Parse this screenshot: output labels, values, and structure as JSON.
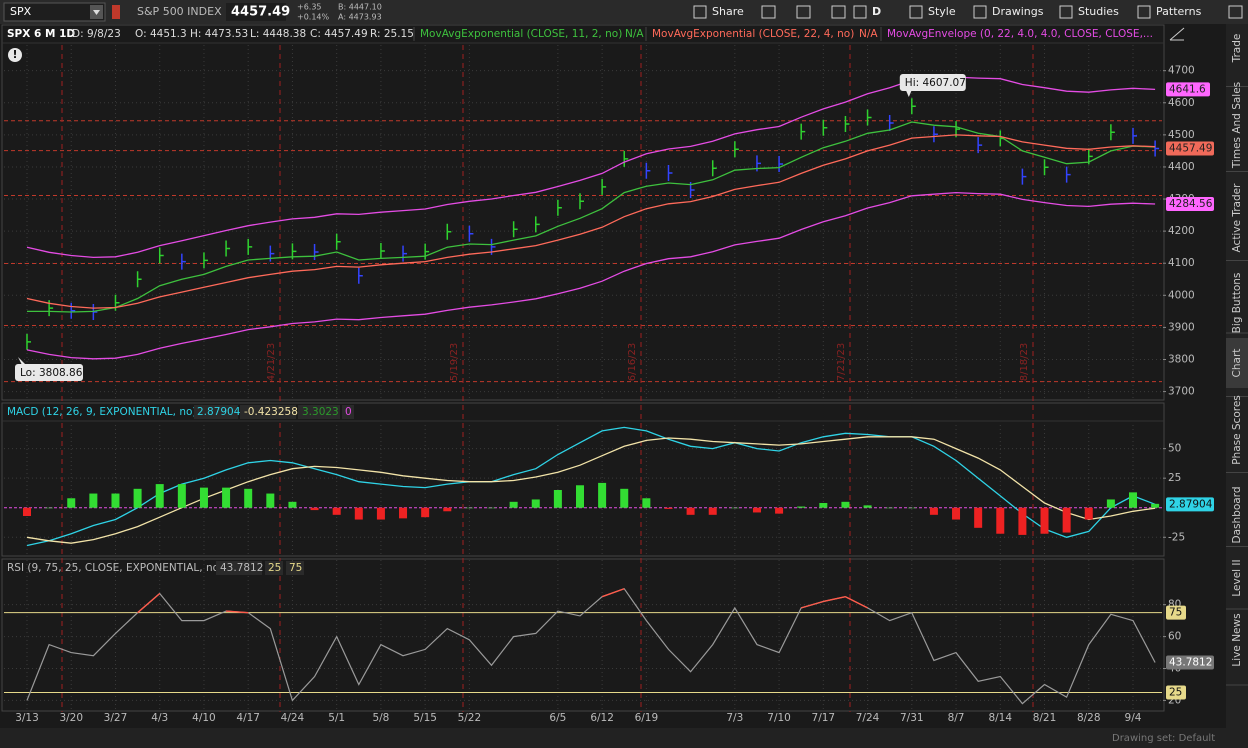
{
  "toolbar": {
    "symbol": "SPX",
    "description": "S&P 500 INDEX",
    "last": "4457.49",
    "change": "+6.35",
    "change_pct": "+0.14%",
    "bid": "B: 4447.10",
    "ask": "A: 4473.93",
    "buttons": [
      "Share",
      "D",
      "Style",
      "Drawings",
      "Studies",
      "Patterns"
    ]
  },
  "side_tabs": [
    "Trade",
    "Times And Sales",
    "Active Trader",
    "Big Buttons",
    "Chart",
    "Phase Scores",
    "Dashboard",
    "Level II",
    "Live News"
  ],
  "status": "Drawing set: Default",
  "chart_data": [
    {
      "type": "line",
      "title": "SPX 6 M 1D",
      "quote": [
        "D: 9/8/23",
        "O: 4451.3",
        "H: 4473.53",
        "L: 4448.38",
        "C: 4457.49",
        "R: 25.15"
      ],
      "study_values": [
        "N/A",
        "N/A"
      ],
      "high_label": "Hi: 4607.07",
      "low_label": "Lo: 3808.86",
      "expirations": [
        "4/21/23",
        "5/19/23",
        "6/16/23",
        "7/21/23",
        "8/18/23"
      ],
      "levels": [
        4544,
        4451,
        4311,
        4099,
        3906,
        3731
      ],
      "ylim": [
        3680,
        4780
      ],
      "yticks": [
        3700,
        3800,
        3900,
        4000,
        4100,
        4200,
        4300,
        4400,
        4500,
        4600,
        4700
      ],
      "grid": true,
      "series": [
        {
          "style": "bars",
          "up_color": "#2fd12f",
          "down_color": "#3344ff",
          "values": [
            3855,
            3960,
            3952,
            3948,
            3977,
            4050,
            4124,
            4105,
            4109,
            4146,
            4151,
            4130,
            4137,
            4135,
            4167,
            4061,
            4138,
            4130,
            4136,
            4198,
            4192,
            4151,
            4206,
            4221,
            4273,
            4293,
            4338,
            4425,
            4388,
            4381,
            4328,
            4396,
            4455,
            4411,
            4409,
            4510,
            4522,
            4534,
            4554,
            4537,
            4589,
            4502,
            4518,
            4468,
            4489,
            4370,
            4399,
            4376,
            4433,
            4508,
            4497,
            4457.49
          ]
        },
        {
          "name": "MovAvgExponential (CLOSE, 11, 2, no)",
          "color": "#3ec13e",
          "values": [
            3950,
            3950,
            3948,
            3950,
            3962,
            3990,
            4030,
            4050,
            4065,
            4090,
            4110,
            4115,
            4120,
            4122,
            4135,
            4110,
            4115,
            4118,
            4122,
            4150,
            4160,
            4158,
            4172,
            4185,
            4215,
            4240,
            4270,
            4320,
            4340,
            4350,
            4345,
            4360,
            4390,
            4395,
            4398,
            4430,
            4460,
            4480,
            4505,
            4515,
            4540,
            4530,
            4525,
            4505,
            4495,
            4450,
            4430,
            4410,
            4415,
            4450,
            4465,
            4462
          ]
        },
        {
          "name": "MovAvgExponential (CLOSE, 22, 4, no)",
          "color": "#ff6a5a",
          "values": [
            3990,
            3975,
            3965,
            3960,
            3962,
            3975,
            3995,
            4010,
            4025,
            4040,
            4055,
            4065,
            4075,
            4080,
            4090,
            4088,
            4095,
            4100,
            4105,
            4118,
            4128,
            4135,
            4145,
            4155,
            4172,
            4190,
            4212,
            4245,
            4270,
            4285,
            4292,
            4308,
            4330,
            4342,
            4352,
            4380,
            4405,
            4425,
            4450,
            4468,
            4490,
            4495,
            4500,
            4497,
            4495,
            4478,
            4468,
            4458,
            4455,
            4462,
            4466,
            4463
          ]
        },
        {
          "name": "MovAvgEnvelope (0, 22, 4.0, 4.0, CLOSE, CLOSE,...",
          "color": "#e44ce4",
          "values": [
            4150,
            4134,
            4124,
            4118,
            4120,
            4134,
            4155,
            4170,
            4186,
            4202,
            4217,
            4228,
            4238,
            4243,
            4254,
            4252,
            4259,
            4264,
            4269,
            4283,
            4293,
            4300,
            4311,
            4321,
            4339,
            4358,
            4380,
            4415,
            4441,
            4456,
            4464,
            4480,
            4503,
            4516,
            4526,
            4555,
            4581,
            4602,
            4628,
            4647,
            4670,
            4675,
            4680,
            4677,
            4675,
            4657,
            4647,
            4636,
            4633,
            4640,
            4645,
            4641.6
          ]
        },
        {
          "color": "#e44ce4",
          "values": [
            3830,
            3816,
            3806,
            3802,
            3804,
            3816,
            3835,
            3850,
            3864,
            3878,
            3893,
            3902,
            3912,
            3917,
            3926,
            3924,
            3931,
            3936,
            3941,
            3953,
            3963,
            3970,
            3979,
            3989,
            4005,
            4022,
            4044,
            4075,
            4099,
            4114,
            4120,
            4136,
            4157,
            4168,
            4178,
            4205,
            4229,
            4248,
            4272,
            4289,
            4310,
            4315,
            4320,
            4317,
            4315,
            4299,
            4289,
            4280,
            4277,
            4284,
            4287,
            4284.56
          ]
        }
      ]
    },
    {
      "type": "combo",
      "header_values": [
        "2.87904",
        "-0.423258",
        "3.3023"
      ],
      "zero_line": 0,
      "ylim": [
        -40,
        70
      ],
      "yticks": [
        -25,
        25,
        50
      ],
      "grid": true,
      "series": [
        {
          "name": "MACD (12, 26, 9, EXPONENTIAL, no)",
          "color": "#2fd3e6",
          "values": [
            -32,
            -28,
            -22,
            -15,
            -10,
            0,
            12,
            20,
            25,
            32,
            38,
            40,
            38,
            33,
            28,
            22,
            20,
            18,
            17,
            20,
            22,
            22,
            28,
            33,
            45,
            55,
            65,
            68,
            65,
            58,
            52,
            50,
            55,
            50,
            48,
            55,
            60,
            63,
            62,
            60,
            60,
            52,
            40,
            25,
            10,
            -5,
            -18,
            -25,
            -20,
            0,
            10,
            2.87904
          ]
        },
        {
          "color": "#f2e3a8",
          "values": [
            -25,
            -28,
            -30,
            -27,
            -22,
            -16,
            -8,
            0,
            8,
            15,
            22,
            28,
            33,
            35,
            34,
            32,
            30,
            27,
            25,
            23,
            22,
            22,
            23,
            26,
            30,
            36,
            44,
            52,
            57,
            59,
            58,
            56,
            55,
            54,
            53,
            54,
            56,
            58,
            60,
            60,
            60,
            58,
            50,
            42,
            32,
            18,
            4,
            -4,
            -10,
            -7,
            -3,
            -0.423258
          ]
        },
        {
          "style": "histogram",
          "up_color": "#33dd33",
          "down_color": "#ee2222",
          "values": [
            -7,
            0,
            8,
            12,
            12,
            16,
            20,
            20,
            17,
            17,
            16,
            12,
            5,
            -2,
            -6,
            -10,
            -10,
            -9,
            -8,
            -3,
            0,
            0,
            5,
            7,
            15,
            19,
            21,
            16,
            8,
            -1,
            -6,
            -6,
            0,
            -4,
            -5,
            1,
            4,
            5,
            2,
            0,
            0,
            -6,
            -10,
            -17,
            -22,
            -23,
            -22,
            -21,
            -10,
            7,
            13,
            3.3023
          ]
        }
      ]
    },
    {
      "type": "line",
      "header_values": [
        "43.7812"
      ],
      "oversold": 25,
      "overbought": 75,
      "ylim": [
        14,
        108
      ],
      "yticks": [
        20,
        40,
        60,
        80
      ],
      "grid": true,
      "overbought_color": "#ff5a4a",
      "oversold_color": "#22cc22",
      "level_color": "#e6d98a",
      "categories": [
        "3/13",
        null,
        "3/20",
        null,
        "3/27",
        null,
        "4/3",
        null,
        "4/10",
        null,
        "4/17",
        null,
        "4/24",
        null,
        "5/1",
        null,
        "5/8",
        null,
        "5/15",
        null,
        "5/22",
        null,
        null,
        null,
        "6/5",
        null,
        "6/12",
        null,
        "6/19",
        null,
        null,
        null,
        "7/3",
        null,
        "7/10",
        null,
        "7/17",
        null,
        "7/24",
        null,
        "7/31",
        null,
        "8/7",
        null,
        "8/14",
        null,
        "8/21",
        null,
        "8/28",
        null,
        "9/4",
        null
      ],
      "series": [
        {
          "name": "RSI (9, 75, 25, CLOSE, EXPONENTIAL, no)",
          "color": "#9a9a9a",
          "style": "rsi",
          "values": [
            20,
            55,
            50,
            48,
            62,
            75,
            87,
            70,
            70,
            76,
            75,
            65,
            20,
            35,
            60,
            30,
            55,
            48,
            52,
            65,
            58,
            42,
            60,
            62,
            76,
            73,
            85,
            90,
            70,
            52,
            38,
            55,
            78,
            55,
            50,
            78,
            82,
            85,
            78,
            70,
            75,
            45,
            50,
            32,
            35,
            18,
            30,
            22,
            55,
            74,
            70,
            43.7812
          ]
        }
      ]
    }
  ]
}
